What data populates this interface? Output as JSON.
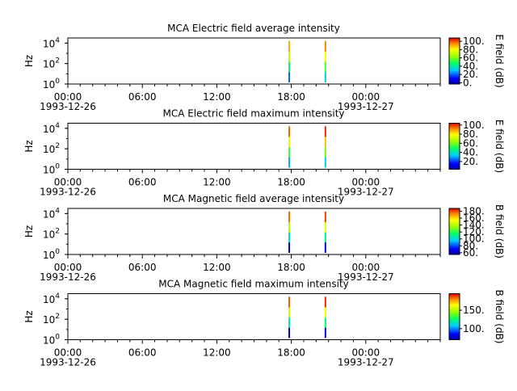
{
  "chart_data": [
    {
      "type": "heatmap",
      "title": "MCA  Electric field average intensity",
      "ylabel": "Hz",
      "y_scale": "log",
      "y_tick_labels": [
        {
          "base": "10",
          "exp": "0"
        },
        {
          "base": "10",
          "exp": "2"
        },
        {
          "base": "10",
          "exp": "4"
        }
      ],
      "x_tick_labels": [
        "00:00",
        "06:00",
        "12:00",
        "18:00",
        "00:00"
      ],
      "date_labels": [
        "1993-12-26",
        "1993-12-27"
      ],
      "colorbar_label": "E field (dB)",
      "colorbar_ticks": [
        "0.",
        "20.",
        "40.",
        "60.",
        "80.",
        "100."
      ],
      "colorbar_range": [
        -3,
        108
      ],
      "colorbar_values": [
        0,
        20,
        40,
        60,
        80,
        100
      ],
      "spikes": [
        {
          "time": "1993-12-26T17:50",
          "values_db": [
            20,
            45,
            70,
            90
          ]
        },
        {
          "time": "1993-12-26T20:45",
          "values_db": [
            30,
            55,
            80,
            95
          ]
        }
      ]
    },
    {
      "type": "heatmap",
      "title": "MCA  Electric field maximum intensity",
      "ylabel": "Hz",
      "y_scale": "log",
      "y_tick_labels": [
        {
          "base": "10",
          "exp": "0"
        },
        {
          "base": "10",
          "exp": "2"
        },
        {
          "base": "10",
          "exp": "4"
        }
      ],
      "x_tick_labels": [
        "00:00",
        "06:00",
        "12:00",
        "18:00",
        "00:00"
      ],
      "date_labels": [
        "1993-12-26",
        "1993-12-27"
      ],
      "colorbar_label": "E field (dB)",
      "colorbar_ticks": [
        "20.",
        "40.",
        "60.",
        "80.",
        "100."
      ],
      "colorbar_range": [
        3,
        104
      ],
      "colorbar_values": [
        20,
        40,
        60,
        80,
        100
      ],
      "spikes": [
        {
          "time": "1993-12-26T17:50",
          "values_db": [
            30,
            55,
            80,
            95
          ]
        },
        {
          "time": "1993-12-26T20:45",
          "values_db": [
            35,
            60,
            85,
            100
          ]
        }
      ]
    },
    {
      "type": "heatmap",
      "title": "MCA  Magnetic field average intensity",
      "ylabel": "Hz",
      "y_scale": "log",
      "y_tick_labels": [
        {
          "base": "10",
          "exp": "0"
        },
        {
          "base": "10",
          "exp": "2"
        },
        {
          "base": "10",
          "exp": "4"
        }
      ],
      "x_tick_labels": [
        "00:00",
        "06:00",
        "12:00",
        "18:00",
        "00:00"
      ],
      "date_labels": [
        "1993-12-26",
        "1993-12-27"
      ],
      "colorbar_label": "B field (dB)",
      "colorbar_ticks": [
        "60.",
        "80.",
        "100.",
        "120.",
        "140.",
        "160.",
        "180."
      ],
      "colorbar_range": [
        55,
        188
      ],
      "colorbar_values": [
        60,
        80,
        100,
        120,
        140,
        160,
        180
      ],
      "spikes": [
        {
          "time": "1993-12-26T17:50",
          "values_db": [
            60,
            100,
            140,
            175
          ]
        },
        {
          "time": "1993-12-26T20:45",
          "values_db": [
            65,
            110,
            150,
            180
          ]
        }
      ]
    },
    {
      "type": "heatmap",
      "title": "MCA  Magnetic field maximum intensity",
      "ylabel": "Hz",
      "y_scale": "log",
      "y_tick_labels": [
        {
          "base": "10",
          "exp": "0"
        },
        {
          "base": "10",
          "exp": "2"
        },
        {
          "base": "10",
          "exp": "4"
        }
      ],
      "x_tick_labels": [
        "00:00",
        "06:00",
        "12:00",
        "18:00",
        "00:00"
      ],
      "date_labels": [
        "1993-12-26",
        "1993-12-27"
      ],
      "colorbar_label": "B field (dB)",
      "colorbar_ticks": [
        "100.",
        "150."
      ],
      "colorbar_range": [
        70,
        195
      ],
      "colorbar_values": [
        100,
        150
      ],
      "spikes": [
        {
          "time": "1993-12-26T17:50",
          "values_db": [
            75,
            115,
            155,
            185
          ]
        },
        {
          "time": "1993-12-26T20:45",
          "values_db": [
            80,
            125,
            165,
            190
          ]
        }
      ]
    }
  ]
}
